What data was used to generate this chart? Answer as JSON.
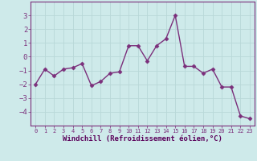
{
  "x": [
    0,
    1,
    2,
    3,
    4,
    5,
    6,
    7,
    8,
    9,
    10,
    11,
    12,
    13,
    14,
    15,
    16,
    17,
    18,
    19,
    20,
    21,
    22,
    23
  ],
  "y": [
    -2.0,
    -0.9,
    -1.4,
    -0.9,
    -0.8,
    -0.5,
    -2.1,
    -1.8,
    -1.2,
    -1.1,
    0.8,
    0.8,
    -0.3,
    0.8,
    1.3,
    3.0,
    -0.7,
    -0.7,
    -1.2,
    -0.9,
    -2.2,
    -2.2,
    -4.3,
    -4.5
  ],
  "line_color": "#7b2f7b",
  "marker": "D",
  "marker_size": 2.5,
  "linewidth": 1.0,
  "xlabel": "Windchill (Refroidissement éolien,°C)",
  "xlabel_color": "#5a005a",
  "xlabel_fontsize": 6.5,
  "xtick_labels": [
    "0",
    "1",
    "2",
    "3",
    "4",
    "5",
    "6",
    "7",
    "8",
    "9",
    "10",
    "11",
    "12",
    "13",
    "14",
    "15",
    "16",
    "17",
    "18",
    "19",
    "20",
    "21",
    "22",
    "23"
  ],
  "xtick_fontsize": 5.0,
  "ytick_fontsize": 6.5,
  "ylim": [
    -5,
    4
  ],
  "yticks": [
    -4,
    -3,
    -2,
    -1,
    0,
    1,
    2,
    3
  ],
  "background_color": "#ceeaea",
  "grid_color": "#b8d8d8",
  "grid_linewidth": 0.6,
  "spine_color": "#7b2f7b",
  "tick_color": "#7b2f7b",
  "label_color": "#7b2f7b"
}
